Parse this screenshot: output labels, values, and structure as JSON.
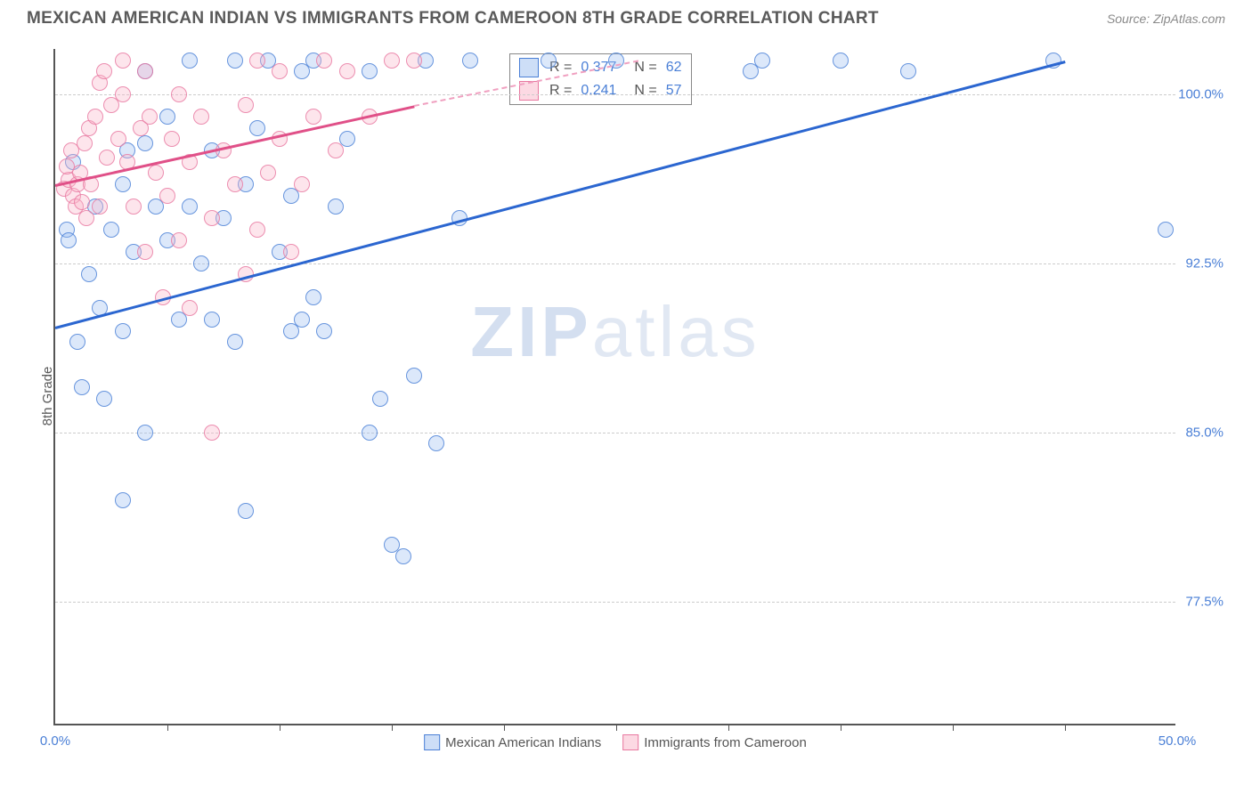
{
  "header": {
    "title": "MEXICAN AMERICAN INDIAN VS IMMIGRANTS FROM CAMEROON 8TH GRADE CORRELATION CHART",
    "source": "Source: ZipAtlas.com"
  },
  "chart": {
    "type": "scatter",
    "y_label": "8th Grade",
    "xlim": [
      0,
      50
    ],
    "ylim": [
      72,
      102
    ],
    "x_ticks": [
      0,
      50
    ],
    "x_tick_labels": [
      "0.0%",
      "50.0%"
    ],
    "x_minor_ticks": [
      5,
      10,
      15,
      20,
      25,
      30,
      35,
      40,
      45
    ],
    "y_ticks": [
      77.5,
      85.0,
      92.5,
      100.0
    ],
    "y_tick_labels": [
      "77.5%",
      "85.0%",
      "92.5%",
      "100.0%"
    ],
    "grid_color": "#cccccc",
    "background_color": "#ffffff",
    "axis_color": "#555555",
    "tick_label_color": "#4a7fd6",
    "point_radius": 9,
    "watermark": {
      "text_bold": "ZIP",
      "text_light": "atlas"
    },
    "series": [
      {
        "name": "Mexican American Indians",
        "color_stroke": "#4a7fd6",
        "color_fill": "rgba(155,190,240,0.35)",
        "R": "0.377",
        "N": "62",
        "trend": {
          "x1": 0,
          "y1": 89.7,
          "x2": 45,
          "y2": 101.5,
          "color": "#2b66d0"
        },
        "points": [
          [
            0.5,
            94.0
          ],
          [
            0.8,
            97.0
          ],
          [
            0.6,
            93.5
          ],
          [
            1.5,
            92.0
          ],
          [
            1.0,
            89.0
          ],
          [
            1.2,
            87.0
          ],
          [
            2.0,
            90.5
          ],
          [
            2.2,
            86.5
          ],
          [
            3.0,
            96.0
          ],
          [
            3.5,
            93.0
          ],
          [
            3.0,
            89.5
          ],
          [
            4.0,
            101.0
          ],
          [
            4.5,
            95.0
          ],
          [
            4.0,
            97.8
          ],
          [
            5.0,
            93.5
          ],
          [
            5.5,
            90.0
          ],
          [
            4.0,
            85.0
          ],
          [
            3.0,
            82.0
          ],
          [
            7.0,
            97.5
          ],
          [
            6.5,
            92.5
          ],
          [
            7.5,
            94.5
          ],
          [
            8.0,
            101.5
          ],
          [
            8.5,
            96.0
          ],
          [
            8.0,
            89.0
          ],
          [
            8.5,
            81.5
          ],
          [
            9.0,
            98.5
          ],
          [
            9.5,
            101.5
          ],
          [
            10.0,
            93.0
          ],
          [
            10.5,
            95.5
          ],
          [
            10.5,
            89.5
          ],
          [
            11.0,
            101.0
          ],
          [
            11.5,
            91.0
          ],
          [
            11.0,
            90.0
          ],
          [
            12.0,
            89.5
          ],
          [
            13.0,
            98.0
          ],
          [
            14.0,
            101.0
          ],
          [
            14.5,
            86.5
          ],
          [
            14.0,
            85.0
          ],
          [
            15.0,
            80.0
          ],
          [
            15.5,
            79.5
          ],
          [
            16.0,
            87.5
          ],
          [
            16.5,
            101.5
          ],
          [
            17.0,
            84.5
          ],
          [
            18.0,
            94.5
          ],
          [
            18.5,
            101.5
          ],
          [
            22.0,
            101.5
          ],
          [
            25.0,
            101.5
          ],
          [
            31.5,
            101.5
          ],
          [
            31.0,
            101.0
          ],
          [
            35.0,
            101.5
          ],
          [
            38.0,
            101.0
          ],
          [
            44.5,
            101.5
          ],
          [
            49.5,
            94.0
          ],
          [
            11.5,
            101.5
          ],
          [
            5.0,
            99.0
          ],
          [
            6.0,
            101.5
          ],
          [
            1.8,
            95.0
          ],
          [
            2.5,
            94.0
          ],
          [
            3.2,
            97.5
          ],
          [
            6.0,
            95.0
          ],
          [
            7.0,
            90.0
          ],
          [
            12.5,
            95.0
          ]
        ]
      },
      {
        "name": "Immigrants from Cameroon",
        "color_stroke": "#e878a0",
        "color_fill": "rgba(250,180,200,0.35)",
        "R": "0.241",
        "N": "57",
        "trend_solid": {
          "x1": 0,
          "y1": 96.0,
          "x2": 16,
          "y2": 99.5,
          "color": "#e05088"
        },
        "trend_dash": {
          "x1": 16,
          "y1": 99.5,
          "x2": 26,
          "y2": 101.5,
          "color": "#f0a0c0"
        },
        "points": [
          [
            0.4,
            95.8
          ],
          [
            0.6,
            96.2
          ],
          [
            0.8,
            95.5
          ],
          [
            0.5,
            96.8
          ],
          [
            0.7,
            97.5
          ],
          [
            0.9,
            95.0
          ],
          [
            1.0,
            96.0
          ],
          [
            1.1,
            96.5
          ],
          [
            1.2,
            95.2
          ],
          [
            1.3,
            97.8
          ],
          [
            1.5,
            98.5
          ],
          [
            1.4,
            94.5
          ],
          [
            1.6,
            96.0
          ],
          [
            1.8,
            99.0
          ],
          [
            2.0,
            100.5
          ],
          [
            2.2,
            101.0
          ],
          [
            2.0,
            95.0
          ],
          [
            2.5,
            99.5
          ],
          [
            2.8,
            98.0
          ],
          [
            3.0,
            100.0
          ],
          [
            3.2,
            97.0
          ],
          [
            3.0,
            101.5
          ],
          [
            3.5,
            95.0
          ],
          [
            3.8,
            98.5
          ],
          [
            4.0,
            101.0
          ],
          [
            4.0,
            93.0
          ],
          [
            4.2,
            99.0
          ],
          [
            4.5,
            96.5
          ],
          [
            4.8,
            91.0
          ],
          [
            5.0,
            95.5
          ],
          [
            5.2,
            98.0
          ],
          [
            5.5,
            93.5
          ],
          [
            5.5,
            100.0
          ],
          [
            6.0,
            97.0
          ],
          [
            6.0,
            90.5
          ],
          [
            6.5,
            99.0
          ],
          [
            7.0,
            94.5
          ],
          [
            7.0,
            85.0
          ],
          [
            7.5,
            97.5
          ],
          [
            8.0,
            96.0
          ],
          [
            8.5,
            99.5
          ],
          [
            8.5,
            92.0
          ],
          [
            9.0,
            94.0
          ],
          [
            9.0,
            101.5
          ],
          [
            9.5,
            96.5
          ],
          [
            10.0,
            98.0
          ],
          [
            10.0,
            101.0
          ],
          [
            10.5,
            93.0
          ],
          [
            11.0,
            96.0
          ],
          [
            11.5,
            99.0
          ],
          [
            12.0,
            101.5
          ],
          [
            12.5,
            97.5
          ],
          [
            13.0,
            101.0
          ],
          [
            14.0,
            99.0
          ],
          [
            15.0,
            101.5
          ],
          [
            16.0,
            101.5
          ],
          [
            2.3,
            97.2
          ]
        ]
      }
    ],
    "legend_top": {
      "rows": [
        {
          "swatch_stroke": "#4a7fd6",
          "swatch_fill": "rgba(155,190,240,0.5)",
          "r_label": "R =",
          "r_val": "0.377",
          "n_label": "N =",
          "n_val": "62"
        },
        {
          "swatch_stroke": "#e878a0",
          "swatch_fill": "rgba(250,180,200,0.5)",
          "r_label": "R =",
          "r_val": "0.241",
          "n_label": "N =",
          "n_val": "57"
        }
      ]
    },
    "legend_bottom": [
      {
        "swatch_stroke": "#4a7fd6",
        "swatch_fill": "rgba(155,190,240,0.5)",
        "label": "Mexican American Indians"
      },
      {
        "swatch_stroke": "#e878a0",
        "swatch_fill": "rgba(250,180,200,0.5)",
        "label": "Immigrants from Cameroon"
      }
    ]
  }
}
